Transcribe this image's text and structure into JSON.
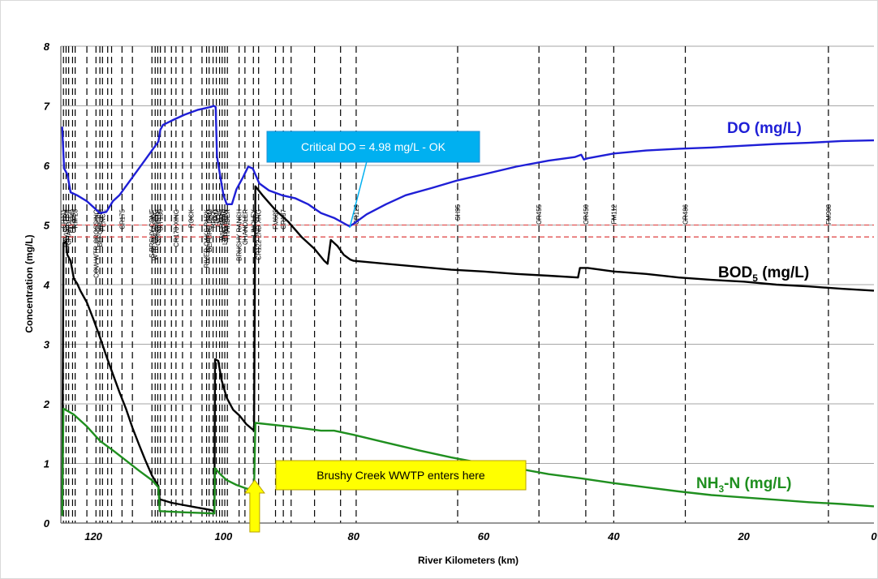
{
  "chart_data": {
    "type": "line",
    "xlabel": "River Kilometers (km)",
    "ylabel": "Concentration (mg/L)",
    "xlim": [
      125,
      0
    ],
    "ylim": [
      0,
      8
    ],
    "x_reversed": true,
    "xticks": [
      120,
      100,
      80,
      60,
      40,
      20,
      0
    ],
    "yticks": [
      0,
      1,
      2,
      3,
      4,
      5,
      6,
      7,
      8
    ],
    "grid": "horizontal",
    "series": [
      {
        "name": "DO (mg/L)",
        "color": "#1f1fd6",
        "points": [
          [
            124.8,
            6.65
          ],
          [
            124.5,
            5.95
          ],
          [
            124,
            5.85
          ],
          [
            123.5,
            5.55
          ],
          [
            122.5,
            5.5
          ],
          [
            121,
            5.4
          ],
          [
            120,
            5.3
          ],
          [
            119,
            5.2
          ],
          [
            118,
            5.22
          ],
          [
            117,
            5.4
          ],
          [
            116,
            5.5
          ],
          [
            115,
            5.65
          ],
          [
            114,
            5.8
          ],
          [
            113,
            5.95
          ],
          [
            112,
            6.1
          ],
          [
            111,
            6.25
          ],
          [
            110,
            6.4
          ],
          [
            109.7,
            6.6
          ],
          [
            109.3,
            6.68
          ],
          [
            108,
            6.75
          ],
          [
            106,
            6.85
          ],
          [
            104,
            6.93
          ],
          [
            102,
            6.98
          ],
          [
            101.5,
            7.0
          ],
          [
            101.2,
            6.98
          ],
          [
            101,
            6.15
          ],
          [
            100.5,
            5.82
          ],
          [
            100,
            5.5
          ],
          [
            99.5,
            5.35
          ],
          [
            98.7,
            5.35
          ],
          [
            98,
            5.6
          ],
          [
            97,
            5.8
          ],
          [
            96.2,
            5.98
          ],
          [
            95.5,
            5.95
          ],
          [
            94.5,
            5.7
          ],
          [
            93,
            5.58
          ],
          [
            91,
            5.5
          ],
          [
            89,
            5.45
          ],
          [
            87,
            5.35
          ],
          [
            85,
            5.2
          ],
          [
            83,
            5.12
          ],
          [
            81,
            5.0
          ],
          [
            80.6,
            4.98
          ],
          [
            80,
            5.02
          ],
          [
            78,
            5.18
          ],
          [
            75,
            5.35
          ],
          [
            72,
            5.5
          ],
          [
            68,
            5.62
          ],
          [
            64,
            5.75
          ],
          [
            60,
            5.85
          ],
          [
            55,
            5.98
          ],
          [
            50,
            6.08
          ],
          [
            46,
            6.14
          ],
          [
            45,
            6.18
          ],
          [
            44.6,
            6.1
          ],
          [
            44,
            6.12
          ],
          [
            40,
            6.2
          ],
          [
            35,
            6.25
          ],
          [
            30,
            6.28
          ],
          [
            25,
            6.3
          ],
          [
            20,
            6.33
          ],
          [
            15,
            6.36
          ],
          [
            10,
            6.38
          ],
          [
            5,
            6.41
          ],
          [
            0,
            6.42
          ]
        ]
      },
      {
        "name": "BOD5 (mg/L)",
        "color": "#000000",
        "points": [
          [
            124.8,
            0.12
          ],
          [
            124.6,
            4.7
          ],
          [
            124.2,
            4.72
          ],
          [
            124,
            4.5
          ],
          [
            123.5,
            4.4
          ],
          [
            123,
            4.1
          ],
          [
            122.5,
            4.02
          ],
          [
            122,
            3.9
          ],
          [
            121,
            3.7
          ],
          [
            120,
            3.42
          ],
          [
            119,
            3.12
          ],
          [
            118,
            2.8
          ],
          [
            117,
            2.5
          ],
          [
            116,
            2.2
          ],
          [
            115,
            1.92
          ],
          [
            114,
            1.6
          ],
          [
            113,
            1.32
          ],
          [
            112,
            1.05
          ],
          [
            111,
            0.8
          ],
          [
            110,
            0.62
          ],
          [
            109.8,
            0.4
          ],
          [
            108,
            0.34
          ],
          [
            106,
            0.3
          ],
          [
            104,
            0.26
          ],
          [
            102,
            0.22
          ],
          [
            101.4,
            0.2
          ],
          [
            101.3,
            2.75
          ],
          [
            100.8,
            2.72
          ],
          [
            100.3,
            2.4
          ],
          [
            99.5,
            2.1
          ],
          [
            98.5,
            1.9
          ],
          [
            97.5,
            1.8
          ],
          [
            96.5,
            1.66
          ],
          [
            95.3,
            1.55
          ],
          [
            95.1,
            5.65
          ],
          [
            94,
            5.5
          ],
          [
            92,
            5.25
          ],
          [
            90,
            5.05
          ],
          [
            88,
            4.8
          ],
          [
            86,
            4.6
          ],
          [
            84.5,
            4.4
          ],
          [
            84,
            4.35
          ],
          [
            83.5,
            4.75
          ],
          [
            82.5,
            4.65
          ],
          [
            81.5,
            4.5
          ],
          [
            80.5,
            4.42
          ],
          [
            80,
            4.4
          ],
          [
            75,
            4.35
          ],
          [
            70,
            4.3
          ],
          [
            65,
            4.25
          ],
          [
            60,
            4.22
          ],
          [
            55,
            4.18
          ],
          [
            50,
            4.15
          ],
          [
            45.5,
            4.12
          ],
          [
            45.2,
            4.28
          ],
          [
            44,
            4.28
          ],
          [
            40,
            4.22
          ],
          [
            35,
            4.18
          ],
          [
            30,
            4.12
          ],
          [
            25,
            4.08
          ],
          [
            20,
            4.05
          ],
          [
            15,
            4.0
          ],
          [
            10,
            3.97
          ],
          [
            5,
            3.93
          ],
          [
            0,
            3.9
          ]
        ]
      },
      {
        "name": "NH3-N (mg/L)",
        "color": "#1f8f1f",
        "points": [
          [
            124.8,
            0.12
          ],
          [
            124.6,
            1.92
          ],
          [
            123,
            1.82
          ],
          [
            121,
            1.62
          ],
          [
            119,
            1.38
          ],
          [
            117,
            1.22
          ],
          [
            115,
            1.05
          ],
          [
            113,
            0.88
          ],
          [
            111,
            0.72
          ],
          [
            110,
            0.6
          ],
          [
            109.8,
            0.2
          ],
          [
            106,
            0.18
          ],
          [
            101.4,
            0.16
          ],
          [
            101.3,
            0.92
          ],
          [
            100.5,
            0.82
          ],
          [
            99.5,
            0.72
          ],
          [
            98,
            0.64
          ],
          [
            96.5,
            0.58
          ],
          [
            95.3,
            0.55
          ],
          [
            95.1,
            1.68
          ],
          [
            90,
            1.62
          ],
          [
            85,
            1.55
          ],
          [
            83,
            1.55
          ],
          [
            80,
            1.48
          ],
          [
            75,
            1.35
          ],
          [
            70,
            1.22
          ],
          [
            65,
            1.1
          ],
          [
            60,
            1.0
          ],
          [
            55,
            0.92
          ],
          [
            50,
            0.82
          ],
          [
            45,
            0.75
          ],
          [
            40,
            0.67
          ],
          [
            35,
            0.6
          ],
          [
            30,
            0.53
          ],
          [
            25,
            0.47
          ],
          [
            20,
            0.43
          ],
          [
            15,
            0.39
          ],
          [
            10,
            0.35
          ],
          [
            5,
            0.32
          ],
          [
            0,
            0.28
          ]
        ]
      }
    ],
    "thresholds": [
      {
        "value": 5.0,
        "color": "#e05050",
        "style": "dashed"
      },
      {
        "value": 4.8,
        "color": "#e05050",
        "style": "dashed"
      }
    ],
    "stations": [
      {
        "km": 124.6,
        "label": "CR111"
      },
      {
        "km": 124.2,
        "label": "DAVIS STRY"
      },
      {
        "km": 123.8,
        "label": "CHANDLER"
      },
      {
        "km": 123.2,
        "label": "FM3349"
      },
      {
        "km": 122.8,
        "label": "RM 28"
      },
      {
        "km": 121.0,
        "label": ""
      },
      {
        "km": 119.6,
        "label": "COW WTR CROSSING"
      },
      {
        "km": 119.0,
        "label": "BEFORE FM"
      },
      {
        "km": 118.6,
        "label": "FENCE"
      },
      {
        "km": 117.8,
        "label": ""
      },
      {
        "km": 117.2,
        "label": ""
      },
      {
        "km": 115.6,
        "label": "CR175"
      },
      {
        "km": 114.0,
        "label": ""
      },
      {
        "km": 111.0,
        "label": "S BRSHY CONF"
      },
      {
        "km": 110.5,
        "label": "WTR CROSSING"
      },
      {
        "km": 110.1,
        "label": "CONCRETE"
      },
      {
        "km": 109.7,
        "label": "SH 130"
      },
      {
        "km": 109.0,
        "label": ""
      },
      {
        "km": 108.0,
        "label": ""
      },
      {
        "km": 107.3,
        "label": "CR173 XING"
      },
      {
        "km": 106.3,
        "label": ""
      },
      {
        "km": 105.0,
        "label": "ROCK"
      },
      {
        "km": 103.3,
        "label": ""
      },
      {
        "km": 102.6,
        "label": "RIVER OAKS PARK"
      },
      {
        "km": 102.2,
        "label": "BEFORE DAM"
      },
      {
        "km": 101.6,
        "label": "ROCK"
      },
      {
        "km": 101.1,
        "label": "DAM"
      },
      {
        "km": 100.6,
        "label": "SH 45"
      },
      {
        "km": 100.2,
        "label": "WILLIAMS"
      },
      {
        "km": 99.8,
        "label": "LONG BOW"
      },
      {
        "km": 99.4,
        "label": "THANDER"
      },
      {
        "km": 97.6,
        "label": "BRUSHY RANCH"
      },
      {
        "km": 96.7,
        "label": "CHANDLER"
      },
      {
        "km": 95.4,
        "label": "LINDLEY"
      },
      {
        "km": 94.6,
        "label": "CR122 2ND XNG"
      },
      {
        "km": 92.0,
        "label": "FM685"
      },
      {
        "km": 90.8,
        "label": "CR137"
      },
      {
        "km": 89.6,
        "label": ""
      },
      {
        "km": 86.0,
        "label": ""
      },
      {
        "km": 82.0,
        "label": ""
      },
      {
        "km": 79.6,
        "label": "CR129"
      },
      {
        "km": 64.0,
        "label": "SH95"
      },
      {
        "km": 51.5,
        "label": "CR455"
      },
      {
        "km": 44.3,
        "label": "CR450"
      },
      {
        "km": 40.0,
        "label": "FM112"
      },
      {
        "km": 29.0,
        "label": "CR486"
      },
      {
        "km": 7.0,
        "label": "FM908"
      }
    ],
    "annotations": {
      "critical_do": {
        "text": "Critical DO = 4.98 mg/L - OK",
        "point_km": 80.6,
        "point_y": 4.98,
        "color": "#00b0f0"
      },
      "wwtp": {
        "text": "Brushy Creek WWTP enters here",
        "point_km": 95.2,
        "color": "#ffff00"
      }
    }
  },
  "series_labels": {
    "do": "DO (mg/L)",
    "bod_main": "BOD",
    "bod_sub": "5",
    "bod_unit": " (mg/L)",
    "nh3_main": "NH",
    "nh3_sub": "3",
    "nh3_unit": "-N (mg/L)"
  },
  "colors": {
    "do": "#1f1fd6",
    "bod": "#000000",
    "nh3": "#1f8f1f",
    "threshold": "#e05050",
    "callout_blue": "#00b0f0",
    "callout_yellow": "#ffff00"
  }
}
